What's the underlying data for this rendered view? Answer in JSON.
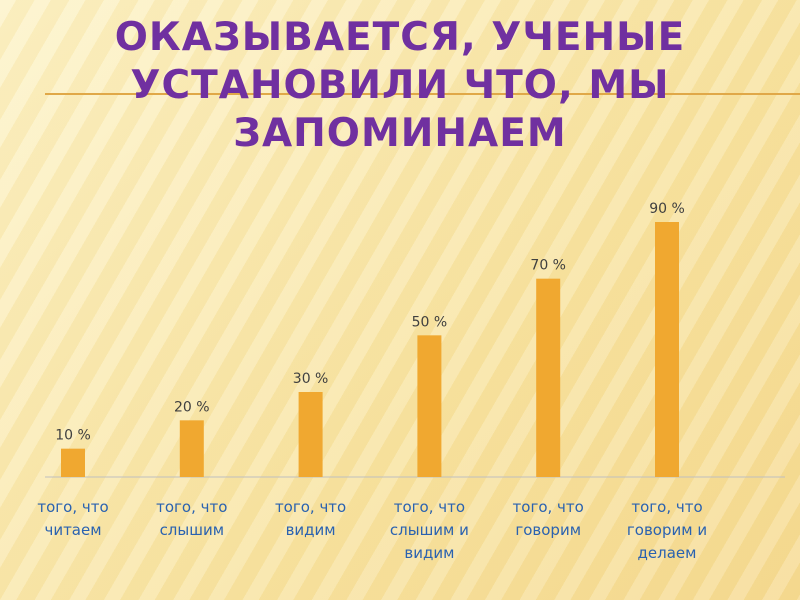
{
  "chart_data": {
    "type": "bar",
    "title": "ОКАЗЫВАЕТСЯ, УЧЕНЫЕ УСТАНОВИЛИ ЧТО, МЫ ЗАПОМИНАЕМ",
    "categories": [
      "того, что читаем",
      "того, что слышим",
      "того, что видим",
      "того, что слышим и видим",
      "того, что говорим",
      "того, что говорим и делаем"
    ],
    "values": [
      10,
      20,
      30,
      50,
      70,
      90
    ],
    "value_labels": [
      "10 %",
      "20 %",
      "30 %",
      "50 %",
      "70 %",
      "90 %"
    ],
    "color": "#f0a830"
  }
}
